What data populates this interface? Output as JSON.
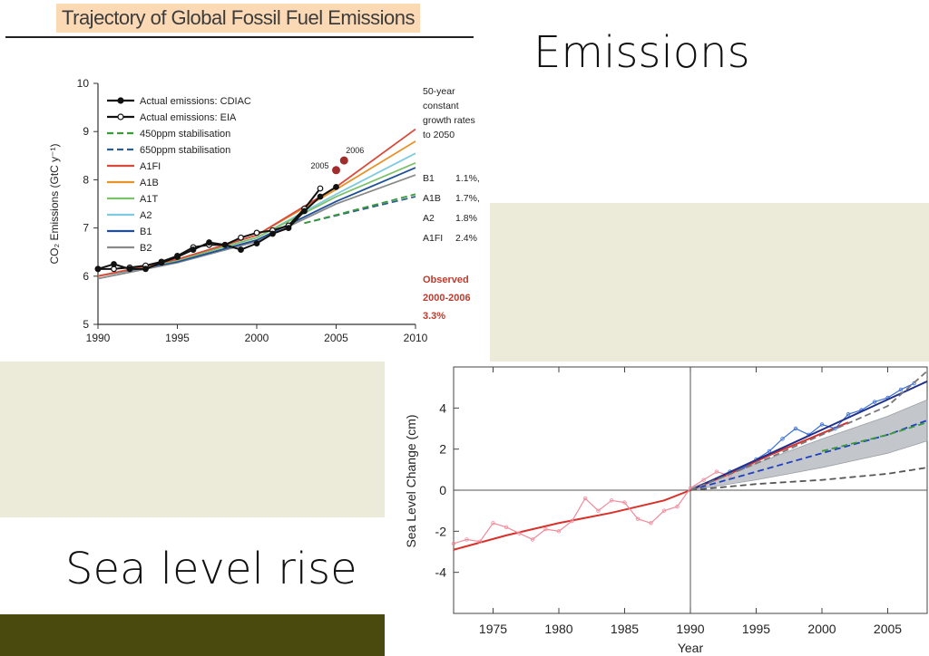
{
  "slide": {
    "heading_emissions": "Emissions",
    "heading_sea_level": "Sea level rise",
    "colors": {
      "band_light": "#ecebd9",
      "band_dark": "#4a4a0e",
      "title_bg": "#fbd9b4"
    }
  },
  "chart_data": [
    {
      "type": "line",
      "title": "Trajectory of Global Fossil Fuel Emissions",
      "ylabel": "CO₂ Emissions (GtC y⁻¹)",
      "xlabel": "",
      "xlim": [
        1990,
        2010
      ],
      "ylim": [
        5,
        10
      ],
      "xticks": [
        "1990",
        "1995",
        "2000",
        "2005",
        "2010"
      ],
      "yticks": [
        "5",
        "6",
        "7",
        "8",
        "9",
        "10"
      ],
      "legend_position": "top-left",
      "series": [
        {
          "name": "Actual emissions: CDIAC",
          "color": "#111111",
          "style": "solid-filled-marker",
          "x": [
            1990,
            1991,
            1992,
            1993,
            1994,
            1995,
            1996,
            1997,
            1998,
            1999,
            2000,
            2001,
            2002,
            2003,
            2004,
            2005
          ],
          "y": [
            6.15,
            6.25,
            6.15,
            6.15,
            6.28,
            6.4,
            6.55,
            6.7,
            6.65,
            6.55,
            6.68,
            6.88,
            7.0,
            7.35,
            7.65,
            7.85
          ]
        },
        {
          "name": "Actual emissions: EIA",
          "color": "#111111",
          "style": "solid-open-marker",
          "x": [
            1990,
            1991,
            1992,
            1993,
            1994,
            1995,
            1996,
            1997,
            1998,
            1999,
            2000,
            2001,
            2002,
            2003,
            2004
          ],
          "y": [
            6.15,
            6.15,
            6.18,
            6.22,
            6.3,
            6.42,
            6.6,
            6.65,
            6.65,
            6.8,
            6.9,
            6.95,
            7.05,
            7.4,
            7.82
          ]
        },
        {
          "name": "450ppm stabilisation",
          "color": "#3a9a3a",
          "style": "dashed",
          "x": [
            2003,
            2010
          ],
          "y": [
            7.1,
            7.7
          ]
        },
        {
          "name": "650ppm stabilisation",
          "color": "#2f5f8a",
          "style": "dashed",
          "x": [
            2003,
            2010
          ],
          "y": [
            7.1,
            7.65
          ]
        },
        {
          "name": "A1FI",
          "color": "#d94a3a",
          "style": "solid",
          "x": [
            1990,
            1995,
            2000,
            2005,
            2010
          ],
          "y": [
            6.0,
            6.35,
            6.85,
            7.85,
            9.05
          ]
        },
        {
          "name": "A1B",
          "color": "#e8922a",
          "style": "solid",
          "x": [
            1990,
            1995,
            2000,
            2005,
            2010
          ],
          "y": [
            6.0,
            6.35,
            6.85,
            7.8,
            8.8
          ]
        },
        {
          "name": "A1T",
          "color": "#7cc26a",
          "style": "solid",
          "x": [
            1990,
            1995,
            2000,
            2005,
            2010
          ],
          "y": [
            6.0,
            6.33,
            6.8,
            7.65,
            8.35
          ]
        },
        {
          "name": "A2",
          "color": "#7ecbe0",
          "style": "solid",
          "x": [
            1990,
            1995,
            2000,
            2005,
            2010
          ],
          "y": [
            6.0,
            6.33,
            6.8,
            7.7,
            8.55
          ]
        },
        {
          "name": "B1",
          "color": "#1f4f9a",
          "style": "solid",
          "x": [
            1990,
            1995,
            2000,
            2005,
            2010
          ],
          "y": [
            6.0,
            6.3,
            6.75,
            7.55,
            8.25
          ]
        },
        {
          "name": "B2",
          "color": "#8a8a8a",
          "style": "solid",
          "x": [
            1990,
            1995,
            2000,
            2005,
            2010
          ],
          "y": [
            5.95,
            6.28,
            6.72,
            7.5,
            8.1
          ]
        }
      ],
      "observed_points": [
        {
          "label": "2005",
          "x": 2005,
          "y": 8.2,
          "color": "#a12c2c"
        },
        {
          "label": "2006",
          "x": 2005.5,
          "y": 8.4,
          "color": "#a12c2c"
        }
      ],
      "side_text": [
        "50-year",
        "constant",
        "growth rates",
        "to 2050"
      ],
      "rates": [
        {
          "scenario": "B1",
          "rate": "1.1%,"
        },
        {
          "scenario": "A1B",
          "rate": "1.7%,"
        },
        {
          "scenario": "A2",
          "rate": "1.8%"
        },
        {
          "scenario": "A1FI",
          "rate": "2.4%"
        }
      ],
      "observed_text": [
        "Observed",
        "2000-2006",
        "3.3%"
      ],
      "observed_color": "#c0392b"
    },
    {
      "type": "line",
      "title": "",
      "xlabel": "Year",
      "ylabel": "Sea Level Change (cm)",
      "xlim": [
        1972,
        2008
      ],
      "ylim": [
        -6,
        6
      ],
      "xticks": [
        "1975",
        "1980",
        "1985",
        "1990",
        "1995",
        "2000",
        "2005"
      ],
      "yticks": [
        "-4",
        "-2",
        "0",
        "2",
        "4"
      ],
      "reference_line_x": 1990,
      "series": [
        {
          "name": "",
          "color": "#d9302a",
          "style": "solid",
          "x": [
            1972,
            1976,
            1980,
            1984,
            1988,
            1990,
            1993,
            1996,
            1999,
            2002
          ],
          "y": [
            -2.9,
            -2.2,
            -1.6,
            -1.1,
            -0.5,
            0,
            0.8,
            1.7,
            2.5,
            3.3
          ]
        },
        {
          "name": "",
          "color": "#f08b9c",
          "style": "thin",
          "x": [
            1972,
            1973,
            1974,
            1975,
            1976,
            1977,
            1978,
            1979,
            1980,
            1981,
            1982,
            1983,
            1984,
            1985,
            1986,
            1987,
            1988,
            1989,
            1990,
            1991,
            1992,
            1993
          ],
          "y": [
            -2.6,
            -2.4,
            -2.5,
            -1.6,
            -1.8,
            -2.1,
            -2.4,
            -1.9,
            -2.0,
            -1.5,
            -0.4,
            -1.0,
            -0.5,
            -0.6,
            -1.4,
            -1.6,
            -1.0,
            -0.8,
            0.1,
            0.5,
            0.9,
            0.7
          ]
        },
        {
          "name": "",
          "color": "#3b6fd6",
          "style": "thin",
          "x": [
            1993,
            1994,
            1995,
            1996,
            1997,
            1998,
            1999,
            2000,
            2001,
            2002,
            2003,
            2004,
            2005,
            2006,
            2007
          ],
          "y": [
            0.9,
            1.1,
            1.5,
            1.9,
            2.5,
            3.0,
            2.7,
            3.2,
            3.0,
            3.7,
            3.9,
            4.3,
            4.5,
            4.9,
            5.2
          ]
        },
        {
          "name": "",
          "color": "#1f2f8a",
          "style": "solid",
          "x": [
            1990,
            2008
          ],
          "y": [
            0,
            5.3
          ]
        },
        {
          "name": "",
          "color": "#1f3fbf",
          "style": "dashed",
          "x": [
            1990,
            1995,
            2000,
            2005,
            2008
          ],
          "y": [
            0,
            0.9,
            1.8,
            2.7,
            3.4
          ]
        },
        {
          "name": "",
          "color": "#3a9a3a",
          "style": "dashed",
          "x": [
            2000,
            2005,
            2008
          ],
          "y": [
            1.9,
            2.7,
            3.3
          ]
        },
        {
          "name": "",
          "color": "#555555",
          "style": "dashed",
          "x": [
            1990,
            1995,
            2000,
            2005,
            2008
          ],
          "y": [
            0,
            0.3,
            0.5,
            0.8,
            1.1
          ]
        },
        {
          "name": "",
          "color": "#777777",
          "style": "dashed",
          "x": [
            1990,
            1995,
            2000,
            2005,
            2008
          ],
          "y": [
            0,
            1.3,
            2.7,
            4.1,
            5.8
          ]
        }
      ],
      "uncertainty_band": {
        "color": "#b9bec4",
        "x": [
          1990,
          1995,
          2000,
          2005,
          2008
        ],
        "upper": [
          0.1,
          1.3,
          2.5,
          3.6,
          4.4
        ],
        "lower": [
          0,
          0.5,
          1.1,
          1.8,
          2.4
        ]
      }
    }
  ]
}
